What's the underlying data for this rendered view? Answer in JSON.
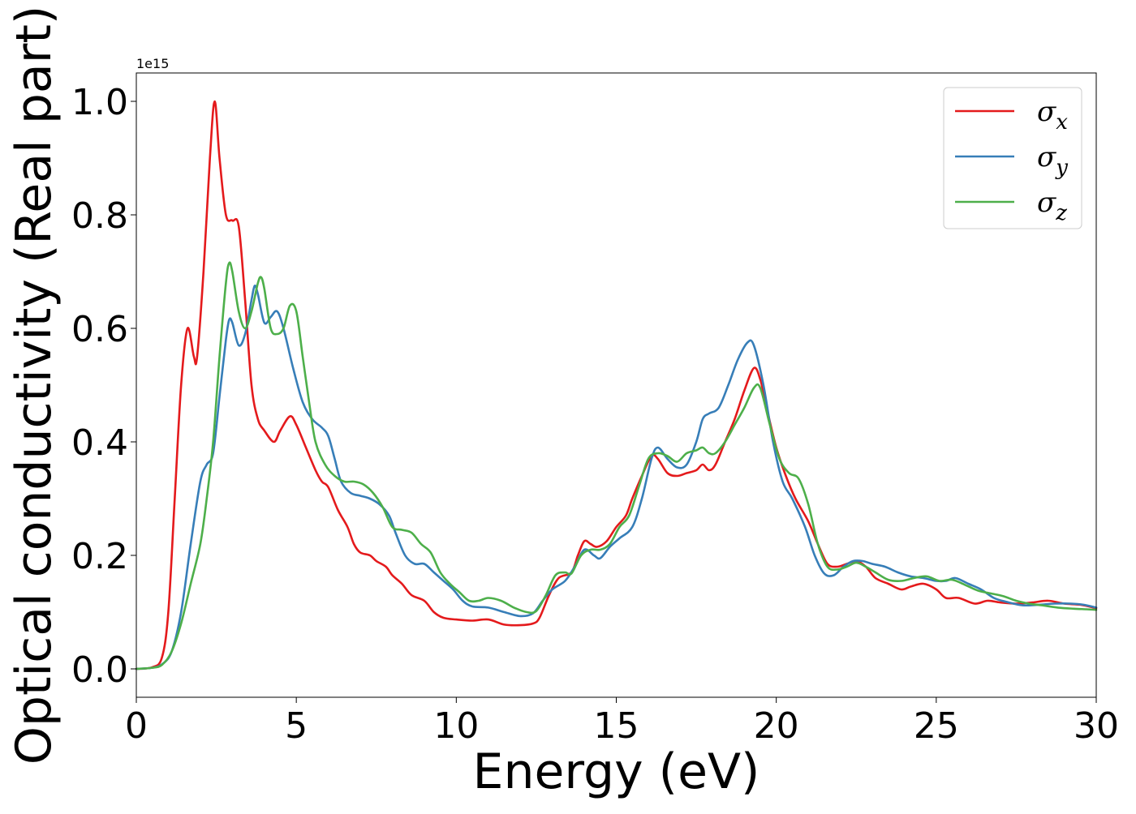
{
  "chart_data": {
    "type": "line",
    "xlabel": "Energy (eV)",
    "ylabel": "Optical conductivity (Real part)",
    "y_offset_label": "1e15",
    "xlim": [
      0,
      30
    ],
    "ylim": [
      -0.05,
      1.05
    ],
    "y_scale_multiplier": 1000000000000000.0,
    "grid": false,
    "legend_position": "top-right",
    "x_ticks": [
      0,
      5,
      10,
      15,
      20,
      25,
      30
    ],
    "x_tick_labels": [
      "0",
      "5",
      "10",
      "15",
      "20",
      "25",
      "30"
    ],
    "y_ticks": [
      0.0,
      0.2,
      0.4,
      0.6,
      0.8,
      1.0
    ],
    "y_tick_labels": [
      "0.0",
      "0.2",
      "0.4",
      "0.6",
      "0.8",
      "1.0"
    ],
    "series": [
      {
        "name": "σx",
        "legend_base": "σ",
        "legend_sub": "x",
        "color": "#e41a1c",
        "points": [
          [
            0,
            0
          ],
          [
            0.5,
            0.003
          ],
          [
            0.8,
            0.02
          ],
          [
            1.0,
            0.1
          ],
          [
            1.2,
            0.3
          ],
          [
            1.4,
            0.5
          ],
          [
            1.6,
            0.6
          ],
          [
            1.8,
            0.55
          ],
          [
            1.9,
            0.55
          ],
          [
            2.1,
            0.7
          ],
          [
            2.3,
            0.9
          ],
          [
            2.45,
            1.0
          ],
          [
            2.6,
            0.9
          ],
          [
            2.8,
            0.8
          ],
          [
            3.0,
            0.79
          ],
          [
            3.2,
            0.78
          ],
          [
            3.4,
            0.65
          ],
          [
            3.6,
            0.5
          ],
          [
            3.8,
            0.44
          ],
          [
            4.0,
            0.42
          ],
          [
            4.3,
            0.4
          ],
          [
            4.5,
            0.42
          ],
          [
            4.8,
            0.445
          ],
          [
            5.0,
            0.43
          ],
          [
            5.3,
            0.39
          ],
          [
            5.6,
            0.35
          ],
          [
            5.8,
            0.33
          ],
          [
            6.0,
            0.32
          ],
          [
            6.3,
            0.28
          ],
          [
            6.6,
            0.25
          ],
          [
            6.8,
            0.22
          ],
          [
            7.0,
            0.205
          ],
          [
            7.3,
            0.2
          ],
          [
            7.5,
            0.19
          ],
          [
            7.8,
            0.18
          ],
          [
            8.0,
            0.165
          ],
          [
            8.3,
            0.15
          ],
          [
            8.6,
            0.13
          ],
          [
            9.0,
            0.12
          ],
          [
            9.3,
            0.1
          ],
          [
            9.6,
            0.09
          ],
          [
            10.0,
            0.087
          ],
          [
            10.5,
            0.085
          ],
          [
            11.0,
            0.087
          ],
          [
            11.5,
            0.078
          ],
          [
            12.0,
            0.077
          ],
          [
            12.4,
            0.08
          ],
          [
            12.6,
            0.09
          ],
          [
            12.9,
            0.13
          ],
          [
            13.2,
            0.16
          ],
          [
            13.6,
            0.17
          ],
          [
            13.8,
            0.2
          ],
          [
            14.0,
            0.225
          ],
          [
            14.2,
            0.22
          ],
          [
            14.4,
            0.215
          ],
          [
            14.7,
            0.225
          ],
          [
            15.0,
            0.25
          ],
          [
            15.3,
            0.27
          ],
          [
            15.5,
            0.3
          ],
          [
            15.8,
            0.34
          ],
          [
            16.1,
            0.375
          ],
          [
            16.3,
            0.37
          ],
          [
            16.6,
            0.345
          ],
          [
            16.9,
            0.34
          ],
          [
            17.2,
            0.345
          ],
          [
            17.5,
            0.35
          ],
          [
            17.7,
            0.36
          ],
          [
            17.9,
            0.35
          ],
          [
            18.1,
            0.36
          ],
          [
            18.4,
            0.4
          ],
          [
            18.7,
            0.44
          ],
          [
            19.0,
            0.49
          ],
          [
            19.3,
            0.53
          ],
          [
            19.5,
            0.51
          ],
          [
            19.7,
            0.46
          ],
          [
            20.0,
            0.39
          ],
          [
            20.3,
            0.34
          ],
          [
            20.6,
            0.3
          ],
          [
            21.0,
            0.26
          ],
          [
            21.3,
            0.22
          ],
          [
            21.6,
            0.185
          ],
          [
            21.9,
            0.18
          ],
          [
            22.2,
            0.185
          ],
          [
            22.5,
            0.19
          ],
          [
            22.8,
            0.18
          ],
          [
            23.1,
            0.16
          ],
          [
            23.5,
            0.15
          ],
          [
            23.9,
            0.14
          ],
          [
            24.2,
            0.145
          ],
          [
            24.6,
            0.15
          ],
          [
            25.0,
            0.14
          ],
          [
            25.3,
            0.125
          ],
          [
            25.7,
            0.125
          ],
          [
            26.2,
            0.115
          ],
          [
            26.6,
            0.12
          ],
          [
            27.0,
            0.117
          ],
          [
            27.5,
            0.115
          ],
          [
            28.0,
            0.117
          ],
          [
            28.5,
            0.12
          ],
          [
            29.0,
            0.115
          ],
          [
            29.5,
            0.113
          ],
          [
            30.0,
            0.107
          ]
        ]
      },
      {
        "name": "σy",
        "legend_base": "σ",
        "legend_sub": "y",
        "color": "#377eb8",
        "points": [
          [
            0,
            0
          ],
          [
            0.5,
            0.002
          ],
          [
            0.8,
            0.008
          ],
          [
            1.1,
            0.03
          ],
          [
            1.4,
            0.1
          ],
          [
            1.7,
            0.22
          ],
          [
            2.0,
            0.33
          ],
          [
            2.2,
            0.36
          ],
          [
            2.4,
            0.38
          ],
          [
            2.6,
            0.48
          ],
          [
            2.8,
            0.58
          ],
          [
            2.9,
            0.615
          ],
          [
            3.0,
            0.61
          ],
          [
            3.2,
            0.57
          ],
          [
            3.4,
            0.59
          ],
          [
            3.6,
            0.65
          ],
          [
            3.7,
            0.675
          ],
          [
            3.8,
            0.66
          ],
          [
            4.0,
            0.61
          ],
          [
            4.2,
            0.62
          ],
          [
            4.4,
            0.63
          ],
          [
            4.6,
            0.6
          ],
          [
            4.9,
            0.53
          ],
          [
            5.2,
            0.47
          ],
          [
            5.5,
            0.44
          ],
          [
            5.8,
            0.425
          ],
          [
            6.0,
            0.41
          ],
          [
            6.2,
            0.37
          ],
          [
            6.4,
            0.33
          ],
          [
            6.7,
            0.31
          ],
          [
            7.0,
            0.305
          ],
          [
            7.3,
            0.3
          ],
          [
            7.6,
            0.29
          ],
          [
            7.9,
            0.27
          ],
          [
            8.1,
            0.24
          ],
          [
            8.4,
            0.2
          ],
          [
            8.7,
            0.185
          ],
          [
            9.0,
            0.185
          ],
          [
            9.3,
            0.17
          ],
          [
            9.6,
            0.155
          ],
          [
            9.9,
            0.14
          ],
          [
            10.2,
            0.12
          ],
          [
            10.5,
            0.11
          ],
          [
            11.0,
            0.108
          ],
          [
            11.5,
            0.1
          ],
          [
            12.0,
            0.093
          ],
          [
            12.4,
            0.098
          ],
          [
            12.7,
            0.12
          ],
          [
            13.0,
            0.14
          ],
          [
            13.4,
            0.155
          ],
          [
            13.7,
            0.18
          ],
          [
            14.0,
            0.21
          ],
          [
            14.3,
            0.2
          ],
          [
            14.5,
            0.195
          ],
          [
            14.8,
            0.215
          ],
          [
            15.1,
            0.23
          ],
          [
            15.5,
            0.25
          ],
          [
            15.8,
            0.3
          ],
          [
            16.1,
            0.37
          ],
          [
            16.3,
            0.39
          ],
          [
            16.6,
            0.37
          ],
          [
            16.9,
            0.355
          ],
          [
            17.2,
            0.36
          ],
          [
            17.5,
            0.4
          ],
          [
            17.7,
            0.44
          ],
          [
            17.9,
            0.45
          ],
          [
            18.2,
            0.46
          ],
          [
            18.5,
            0.5
          ],
          [
            18.8,
            0.545
          ],
          [
            19.1,
            0.575
          ],
          [
            19.3,
            0.57
          ],
          [
            19.6,
            0.5
          ],
          [
            19.9,
            0.4
          ],
          [
            20.2,
            0.33
          ],
          [
            20.5,
            0.3
          ],
          [
            20.9,
            0.25
          ],
          [
            21.2,
            0.2
          ],
          [
            21.5,
            0.168
          ],
          [
            21.8,
            0.165
          ],
          [
            22.1,
            0.18
          ],
          [
            22.4,
            0.19
          ],
          [
            22.7,
            0.19
          ],
          [
            23.0,
            0.185
          ],
          [
            23.4,
            0.18
          ],
          [
            23.8,
            0.17
          ],
          [
            24.2,
            0.163
          ],
          [
            24.6,
            0.16
          ],
          [
            25.0,
            0.155
          ],
          [
            25.3,
            0.155
          ],
          [
            25.6,
            0.16
          ],
          [
            26.0,
            0.15
          ],
          [
            26.4,
            0.14
          ],
          [
            26.8,
            0.125
          ],
          [
            27.2,
            0.118
          ],
          [
            27.7,
            0.112
          ],
          [
            28.2,
            0.113
          ],
          [
            28.7,
            0.115
          ],
          [
            29.2,
            0.115
          ],
          [
            29.6,
            0.113
          ],
          [
            30.0,
            0.108
          ]
        ]
      },
      {
        "name": "σz",
        "legend_base": "σ",
        "legend_sub": "z",
        "color": "#4daf4a",
        "points": [
          [
            0,
            0
          ],
          [
            0.5,
            0.002
          ],
          [
            0.8,
            0.007
          ],
          [
            1.1,
            0.03
          ],
          [
            1.4,
            0.08
          ],
          [
            1.7,
            0.15
          ],
          [
            2.0,
            0.22
          ],
          [
            2.2,
            0.3
          ],
          [
            2.4,
            0.4
          ],
          [
            2.6,
            0.55
          ],
          [
            2.8,
            0.68
          ],
          [
            2.9,
            0.715
          ],
          [
            3.0,
            0.7
          ],
          [
            3.2,
            0.63
          ],
          [
            3.4,
            0.6
          ],
          [
            3.6,
            0.63
          ],
          [
            3.8,
            0.68
          ],
          [
            3.9,
            0.69
          ],
          [
            4.0,
            0.67
          ],
          [
            4.2,
            0.6
          ],
          [
            4.4,
            0.59
          ],
          [
            4.6,
            0.6
          ],
          [
            4.8,
            0.64
          ],
          [
            5.0,
            0.63
          ],
          [
            5.2,
            0.55
          ],
          [
            5.4,
            0.47
          ],
          [
            5.6,
            0.4
          ],
          [
            5.9,
            0.36
          ],
          [
            6.2,
            0.34
          ],
          [
            6.5,
            0.33
          ],
          [
            6.8,
            0.33
          ],
          [
            7.1,
            0.325
          ],
          [
            7.4,
            0.31
          ],
          [
            7.7,
            0.285
          ],
          [
            8.0,
            0.25
          ],
          [
            8.3,
            0.245
          ],
          [
            8.6,
            0.24
          ],
          [
            8.9,
            0.22
          ],
          [
            9.2,
            0.205
          ],
          [
            9.5,
            0.17
          ],
          [
            9.8,
            0.15
          ],
          [
            10.1,
            0.135
          ],
          [
            10.4,
            0.12
          ],
          [
            10.7,
            0.12
          ],
          [
            11.0,
            0.125
          ],
          [
            11.4,
            0.12
          ],
          [
            11.8,
            0.108
          ],
          [
            12.2,
            0.1
          ],
          [
            12.5,
            0.102
          ],
          [
            12.8,
            0.13
          ],
          [
            13.1,
            0.165
          ],
          [
            13.4,
            0.17
          ],
          [
            13.6,
            0.168
          ],
          [
            13.9,
            0.2
          ],
          [
            14.2,
            0.21
          ],
          [
            14.5,
            0.21
          ],
          [
            14.8,
            0.22
          ],
          [
            15.1,
            0.25
          ],
          [
            15.4,
            0.27
          ],
          [
            15.7,
            0.32
          ],
          [
            16.0,
            0.37
          ],
          [
            16.3,
            0.38
          ],
          [
            16.6,
            0.375
          ],
          [
            16.9,
            0.365
          ],
          [
            17.2,
            0.38
          ],
          [
            17.5,
            0.385
          ],
          [
            17.7,
            0.39
          ],
          [
            17.9,
            0.38
          ],
          [
            18.1,
            0.38
          ],
          [
            18.4,
            0.4
          ],
          [
            18.7,
            0.43
          ],
          [
            19.0,
            0.46
          ],
          [
            19.3,
            0.495
          ],
          [
            19.5,
            0.495
          ],
          [
            19.8,
            0.43
          ],
          [
            20.1,
            0.37
          ],
          [
            20.4,
            0.345
          ],
          [
            20.7,
            0.335
          ],
          [
            21.0,
            0.29
          ],
          [
            21.3,
            0.22
          ],
          [
            21.6,
            0.18
          ],
          [
            21.9,
            0.175
          ],
          [
            22.2,
            0.18
          ],
          [
            22.5,
            0.187
          ],
          [
            22.8,
            0.18
          ],
          [
            23.1,
            0.17
          ],
          [
            23.5,
            0.157
          ],
          [
            23.9,
            0.155
          ],
          [
            24.3,
            0.16
          ],
          [
            24.7,
            0.163
          ],
          [
            25.1,
            0.155
          ],
          [
            25.5,
            0.157
          ],
          [
            25.9,
            0.148
          ],
          [
            26.3,
            0.138
          ],
          [
            26.7,
            0.133
          ],
          [
            27.1,
            0.128
          ],
          [
            27.5,
            0.12
          ],
          [
            27.9,
            0.115
          ],
          [
            28.3,
            0.112
          ],
          [
            28.8,
            0.108
          ],
          [
            29.3,
            0.106
          ],
          [
            29.7,
            0.105
          ],
          [
            30.0,
            0.104
          ]
        ]
      }
    ]
  }
}
